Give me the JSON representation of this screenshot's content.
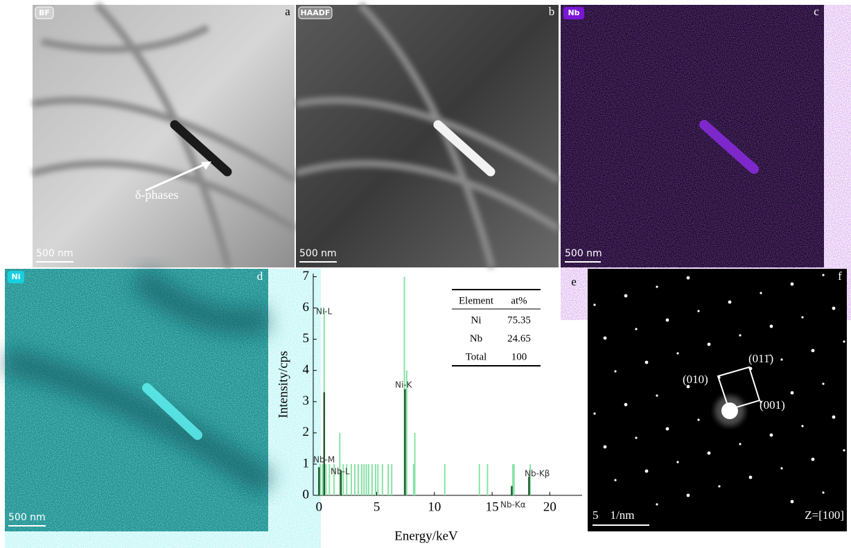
{
  "images": [
    {
      "letter": "a",
      "tag": "BF",
      "scale_bar": "500 nm",
      "annotation": "δ-phases"
    },
    {
      "letter": "b",
      "tag": "HAADF",
      "scale_bar": "500 nm"
    },
    {
      "letter": "c",
      "tag": "Nb",
      "scale_bar": "500 nm"
    },
    {
      "letter": "d",
      "tag": "Ni",
      "scale_bar": "500 nm"
    },
    {
      "letter": "f",
      "scale_bar": "5    1/nm",
      "zone_axis": "Z=[100]",
      "spots": [
        "(010)",
        "(011̄)",
        "(001)"
      ]
    }
  ],
  "chart_data": {
    "type": "bar",
    "letter": "e",
    "x_label": "Energy/keV",
    "y_label": "Intensity/cps",
    "xlim": [
      -0.5,
      22.8
    ],
    "ylim": [
      0,
      7.1
    ],
    "xticks": [
      0,
      5,
      10,
      15,
      20
    ],
    "yticks": [
      0,
      1,
      2,
      3,
      4,
      5,
      6,
      7
    ],
    "series": [
      {
        "color": "#86e3a6",
        "x": [
          0.1,
          0.3,
          0.45,
          0.6,
          0.9,
          1.3,
          1.8,
          2.1,
          2.4,
          2.8,
          3.1,
          3.4,
          3.7,
          3.9,
          4.1,
          4.3,
          4.6,
          4.9,
          5.1,
          5.5,
          6.0,
          6.3,
          7.4,
          7.6,
          8.2,
          8.3,
          10.9,
          13.9,
          14.6,
          16.8,
          16.9,
          18.3
        ],
        "values": [
          1,
          1,
          6,
          1,
          1,
          1,
          2,
          1,
          1,
          1,
          1,
          1,
          1,
          1,
          1,
          1,
          1,
          1,
          1,
          1,
          1,
          1,
          7,
          4,
          1,
          2,
          1,
          1,
          1,
          1,
          1,
          1
        ]
      },
      {
        "color": "#1d5a2c",
        "x": [
          0.0,
          0.45,
          1.9,
          7.45,
          16.7,
          18.2
        ],
        "values": [
          0.9,
          3.3,
          0.8,
          3.4,
          0.3,
          0.6
        ]
      }
    ],
    "annotations": [
      "Ni-L",
      "Ni-K",
      "Nb-M",
      "Nb-L",
      "Nb-Kα",
      "Nb-Kβ"
    ],
    "table": {
      "header": [
        "Element",
        "at%"
      ],
      "rows": [
        [
          "Ni",
          75.35
        ],
        [
          "Nb",
          24.65
        ],
        [
          "Total",
          100
        ]
      ]
    }
  }
}
